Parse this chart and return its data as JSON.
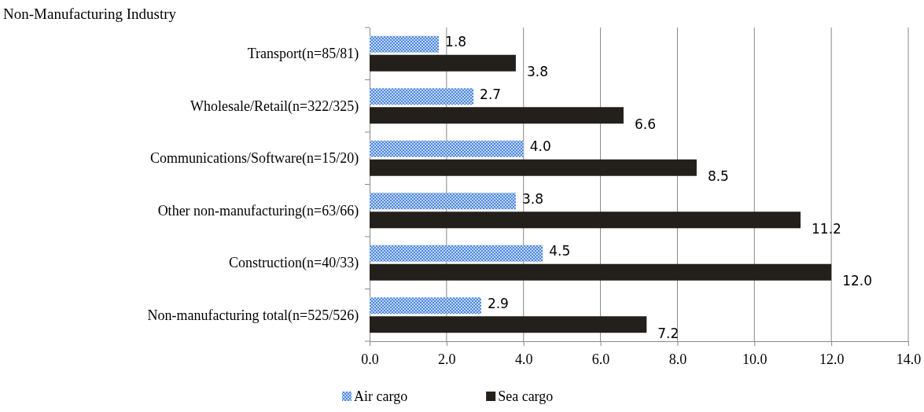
{
  "chart_data": {
    "type": "bar",
    "orientation": "horizontal",
    "title": "Non-Manufacturing Industry",
    "categories": [
      "Transport(n=85/81)",
      "Wholesale/Retail(n=322/325)",
      "Communications/Software(n=15/20)",
      "Other non-manufacturing(n=63/66)",
      "Construction(n=40/33)",
      "Non-manufacturing total(n=525/526)"
    ],
    "series": [
      {
        "name": "Air cargo",
        "color": "#4a86e0",
        "values": [
          1.8,
          2.7,
          4.0,
          3.8,
          4.5,
          2.9
        ],
        "value_labels": [
          "1.8",
          "2.7",
          "4.0",
          "3.8",
          "4.5",
          "2.9"
        ]
      },
      {
        "name": "Sea cargo",
        "color": "#231f1a",
        "values": [
          3.8,
          6.6,
          8.5,
          11.2,
          12.0,
          7.2
        ],
        "value_labels": [
          "3.8",
          "6.6",
          "8.5",
          "11.2",
          "12.0",
          "7.2"
        ]
      }
    ],
    "xlim": [
      0,
      14
    ],
    "xticks": [
      {
        "value": 0,
        "label": "0.0"
      },
      {
        "value": 2,
        "label": "2.0"
      },
      {
        "value": 4,
        "label": "4.0"
      },
      {
        "value": 6,
        "label": "6.0"
      },
      {
        "value": 8,
        "label": "8.0"
      },
      {
        "value": 10,
        "label": "10.0"
      },
      {
        "value": 12,
        "label": "12.0"
      },
      {
        "value": 14,
        "label": "14.0"
      }
    ],
    "grid": "x",
    "legend": "bottom"
  }
}
